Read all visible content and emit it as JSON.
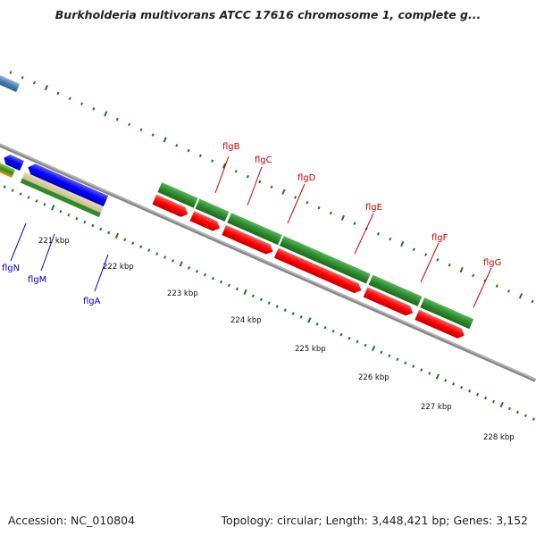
{
  "title": "Burkholderia multivorans ATCC 17616 chromosome 1, complete g...",
  "footer": {
    "accession_label": "Accession:",
    "accession": "NC_010804",
    "topology_label": "Topology:",
    "topology": "circular",
    "length_label": "Length:",
    "length": "3,448,421 bp",
    "genes_label": "Genes:",
    "genes": "3,152"
  },
  "ruler_ticks": [
    "221 kbp",
    "222 kbp",
    "223 kbp",
    "224 kbp",
    "225 kbp",
    "226 kbp",
    "227 kbp",
    "228 kbp"
  ],
  "gene_labels": [
    "flgN",
    "flgM",
    "flgA",
    "flgB",
    "flgC",
    "flgD",
    "flgE",
    "flgF",
    "flgG"
  ],
  "colors": {
    "backbone": "#8a8a8a",
    "forward_gene": "#2e8b2e",
    "reverse_gene": "#ff0000",
    "reverse_cds": "#0000ff",
    "forward_label": "#cc0000",
    "reverse_label": "#0000cc",
    "tick": "#1a7a1a",
    "upstream_gene": "#4682b4"
  }
}
